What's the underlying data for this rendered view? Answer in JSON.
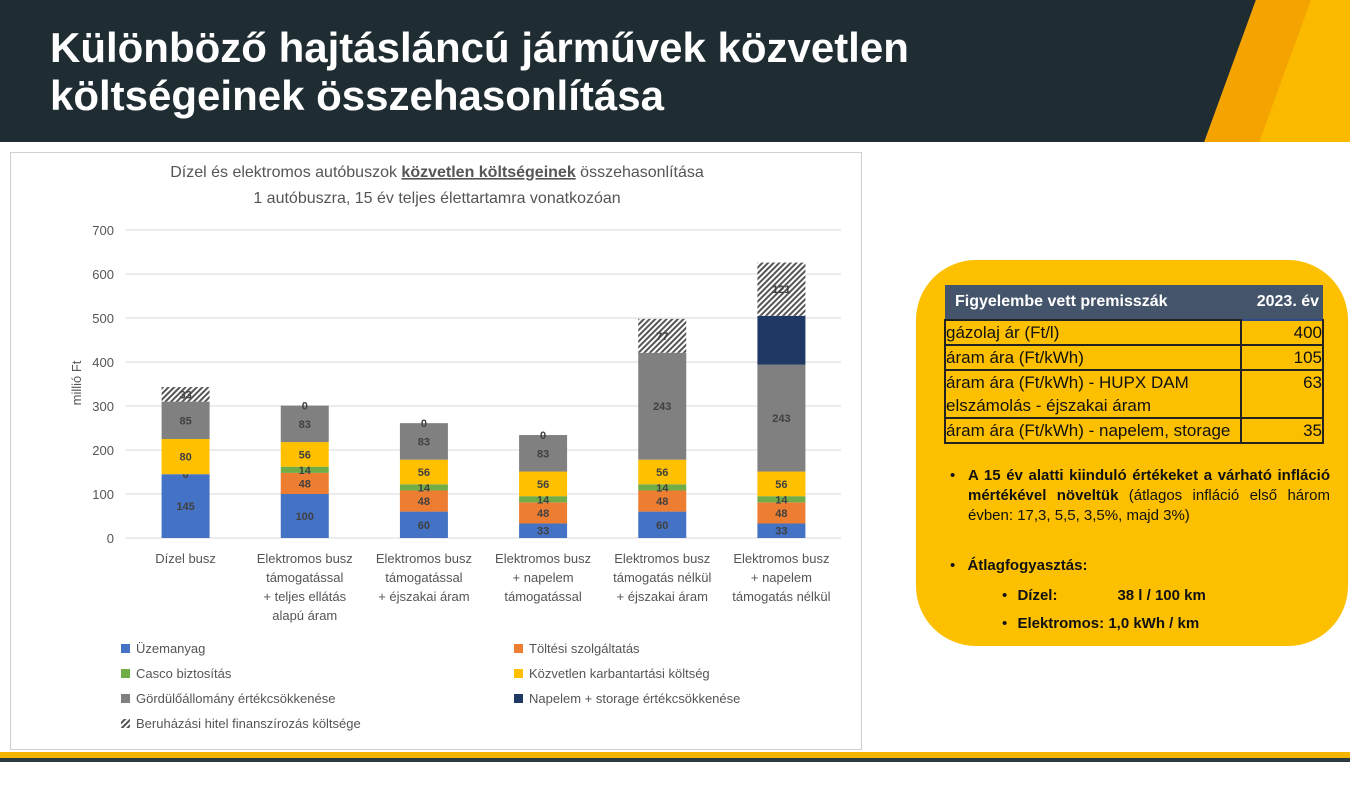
{
  "header": {
    "title": "Különböző hajtásláncú járművek közvetlen költségeinek összehasonlítása"
  },
  "chart_data": {
    "type": "bar",
    "stacked": true,
    "title_line1_pre": "Dízel és elektromos autóbuszok ",
    "title_line1_bold": "közvetlen költségeinek",
    "title_line1_post": " összehasonlítása",
    "title_line2": "1 autóbuszra, 15 év teljes élettartamra vonatkozóan",
    "ylabel": "millió Ft",
    "ylim": [
      0,
      700
    ],
    "yticks": [
      0,
      100,
      200,
      300,
      400,
      500,
      600,
      700
    ],
    "categories": [
      [
        "Dízel busz"
      ],
      [
        "Elektromos busz",
        "támogatással",
        "+ teljes ellátás",
        "alapú áram"
      ],
      [
        "Elektromos busz",
        "támogatással",
        "+ éjszakai áram"
      ],
      [
        "Elektromos busz",
        "+ napelem",
        "támogatással"
      ],
      [
        "Elektromos busz",
        "támogatás nélkül",
        "+ éjszakai áram"
      ],
      [
        "Elektromos busz",
        "+ napelem",
        "támogatás nélkül"
      ]
    ],
    "series": [
      {
        "name": "Üzemanyag",
        "color": "#4472c4",
        "values": [
          145,
          100,
          60,
          33,
          60,
          33
        ],
        "labels": [
          "145",
          "100",
          "60",
          "33",
          "60",
          "33"
        ]
      },
      {
        "name": "Töltési szolgáltatás",
        "color": "#ed7d31",
        "values": [
          0,
          48,
          48,
          48,
          48,
          48
        ],
        "labels": [
          "0",
          "48",
          "48",
          "48",
          "48",
          "48"
        ]
      },
      {
        "name": "Casco biztosítás",
        "color": "#70ad47",
        "values": [
          0,
          14,
          14,
          14,
          14,
          14
        ],
        "labels": [
          "",
          "14",
          "14",
          "14",
          "14",
          "14"
        ]
      },
      {
        "name": "Közvetlen karbantartási költség",
        "color": "#ffc000",
        "values": [
          80,
          56,
          56,
          56,
          56,
          56
        ],
        "labels": [
          "80",
          "56",
          "56",
          "56",
          "56",
          "56"
        ]
      },
      {
        "name": "Gördülőállomány értékcsökkenése",
        "color": "#808080",
        "values": [
          85,
          83,
          83,
          83,
          243,
          243
        ],
        "labels": [
          "85",
          "83",
          "83",
          "83",
          "243",
          "243"
        ]
      },
      {
        "name": "Napelem + storage értékcsökkenése",
        "color": "#1f3864",
        "values": [
          0,
          0,
          0,
          0,
          0,
          111
        ],
        "labels": [
          "",
          "",
          "",
          "",
          "",
          ""
        ]
      },
      {
        "name": "Beruházási hitel finanszírozás költsége",
        "color": "hatch",
        "values": [
          33,
          0,
          0,
          0,
          77,
          121
        ],
        "labels": [
          "33",
          "0",
          "0",
          "0",
          "77",
          "121"
        ]
      }
    ],
    "legend": "bottom"
  },
  "panel": {
    "table": {
      "headers": [
        "Figyelembe vett premisszák",
        "2023. év"
      ],
      "rows": [
        [
          "gázolaj ár (Ft/l)",
          "400"
        ],
        [
          "áram ára (Ft/kWh)",
          "105"
        ],
        [
          "áram ára (Ft/kWh) - HUPX DAM elszámolás - éjszakai áram",
          "63"
        ],
        [
          "áram ára (Ft/kWh) - napelem, storage",
          "35"
        ]
      ]
    },
    "bullet1_bold": "A 15 év alatti kiinduló értékeket a várható infláció mértékével növeltük",
    "bullet1_rest": " (átlagos infláció első három évben: 17,3, 5,5, 3,5%, majd 3%)",
    "bullet2": "Átlagfogyasztás:",
    "diesel_label": "Dízel:",
    "diesel_value": "38 l / 100 km",
    "electric_label": "Elektromos:",
    "electric_value": "1,0 kWh / km"
  }
}
